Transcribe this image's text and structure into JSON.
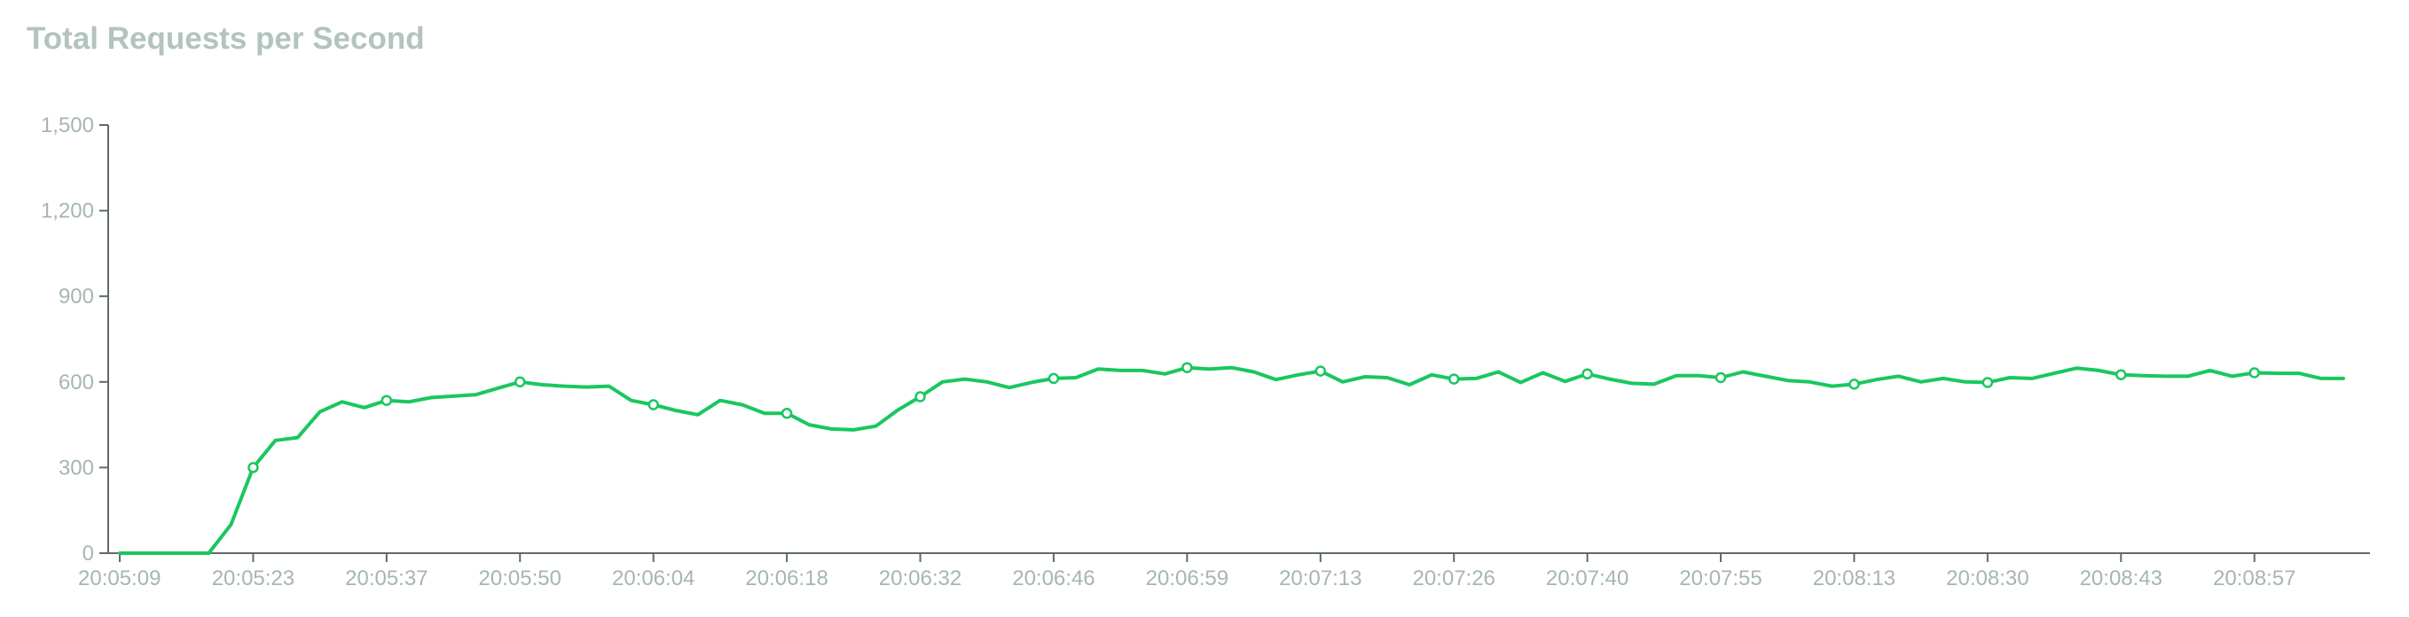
{
  "header": {
    "title": "Total Requests per Second"
  },
  "chart_data": {
    "type": "line",
    "title": "Total Requests per Second",
    "xlabel": "",
    "ylabel": "",
    "ylim": [
      0,
      1500
    ],
    "y_ticks": [
      0,
      300,
      600,
      900,
      1200,
      1500
    ],
    "y_tick_labels": [
      "0",
      "300",
      "600",
      "900",
      "1,200",
      "1,500"
    ],
    "x_tick_labels": [
      "20:05:09",
      "20:05:23",
      "20:05:37",
      "20:05:50",
      "20:06:04",
      "20:06:18",
      "20:06:32",
      "20:06:46",
      "20:06:59",
      "20:07:13",
      "20:07:26",
      "20:07:40",
      "20:07:55",
      "20:08:13",
      "20:08:30",
      "20:08:43",
      "20:08:57"
    ],
    "grid": false,
    "legend": "none",
    "color": "#19c75f",
    "series": [
      {
        "values": [
          0,
          0,
          0,
          0,
          0,
          100,
          300,
          395,
          405,
          495,
          530,
          510,
          535,
          530,
          545,
          550,
          555,
          578,
          600,
          590,
          585,
          582,
          585,
          535,
          520,
          500,
          485,
          535,
          520,
          490,
          490,
          450,
          435,
          432,
          445,
          502,
          548,
          600,
          610,
          600,
          580,
          598,
          612,
          615,
          645,
          640,
          640,
          628,
          650,
          645,
          650,
          635,
          608,
          625,
          638,
          600,
          618,
          615,
          590,
          625,
          610,
          612,
          635,
          598,
          632,
          602,
          628,
          610,
          595,
          592,
          622,
          622,
          615,
          635,
          620,
          605,
          600,
          585,
          592,
          608,
          620,
          600,
          612,
          600,
          598,
          615,
          612,
          630,
          648,
          640,
          625,
          622,
          620,
          620,
          640,
          620,
          632,
          630,
          630,
          612,
          612
        ],
        "markers": [
          6,
          12,
          18,
          24,
          30,
          36,
          42,
          48,
          54,
          60,
          66,
          72,
          78,
          84,
          90,
          96
        ]
      }
    ]
  }
}
